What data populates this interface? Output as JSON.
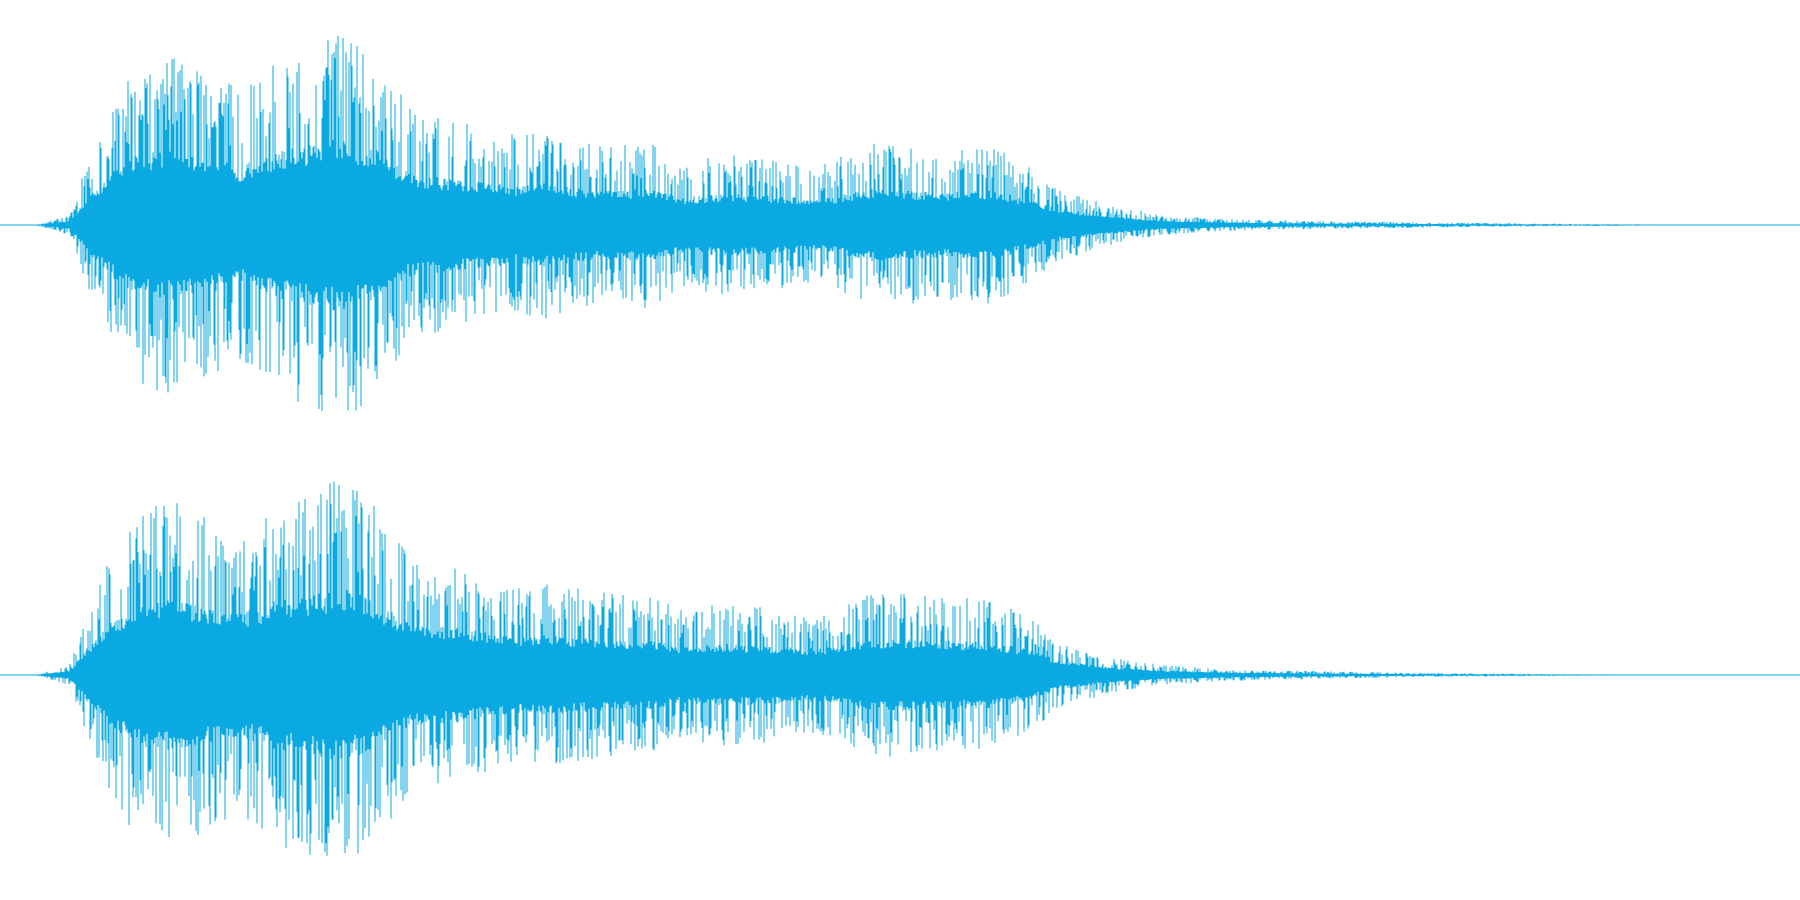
{
  "waveform": {
    "color": "#0aa9e2",
    "background": "#ffffff",
    "channels": [
      {
        "name": "channel-1",
        "envelope": [
          [
            0.0,
            0.0
          ],
          [
            0.02,
            0.05
          ],
          [
            0.03,
            0.3
          ],
          [
            0.045,
            0.6
          ],
          [
            0.06,
            0.82
          ],
          [
            0.08,
            0.86
          ],
          [
            0.1,
            0.8
          ],
          [
            0.12,
            0.68
          ],
          [
            0.14,
            0.84
          ],
          [
            0.16,
            0.92
          ],
          [
            0.18,
            1.0
          ],
          [
            0.2,
            0.86
          ],
          [
            0.22,
            0.58
          ],
          [
            0.25,
            0.52
          ],
          [
            0.28,
            0.46
          ],
          [
            0.3,
            0.48
          ],
          [
            0.33,
            0.4
          ],
          [
            0.36,
            0.42
          ],
          [
            0.38,
            0.32
          ],
          [
            0.4,
            0.36
          ],
          [
            0.43,
            0.34
          ],
          [
            0.46,
            0.3
          ],
          [
            0.49,
            0.42
          ],
          [
            0.53,
            0.38
          ],
          [
            0.56,
            0.4
          ],
          [
            0.58,
            0.3
          ],
          [
            0.6,
            0.18
          ],
          [
            0.63,
            0.1
          ],
          [
            0.66,
            0.05
          ],
          [
            0.7,
            0.03
          ],
          [
            0.75,
            0.02
          ],
          [
            0.8,
            0.015
          ],
          [
            0.85,
            0.01
          ],
          [
            0.9,
            0.006
          ],
          [
            0.95,
            0.003
          ],
          [
            0.97,
            0.001
          ],
          [
            1.0,
            0.0
          ]
        ]
      },
      {
        "name": "channel-2",
        "envelope": [
          [
            0.0,
            0.0
          ],
          [
            0.02,
            0.05
          ],
          [
            0.03,
            0.3
          ],
          [
            0.045,
            0.62
          ],
          [
            0.06,
            0.84
          ],
          [
            0.08,
            0.88
          ],
          [
            0.1,
            0.8
          ],
          [
            0.12,
            0.7
          ],
          [
            0.14,
            0.86
          ],
          [
            0.16,
            0.92
          ],
          [
            0.18,
            1.0
          ],
          [
            0.2,
            0.84
          ],
          [
            0.22,
            0.58
          ],
          [
            0.25,
            0.54
          ],
          [
            0.28,
            0.44
          ],
          [
            0.3,
            0.46
          ],
          [
            0.33,
            0.42
          ],
          [
            0.36,
            0.4
          ],
          [
            0.38,
            0.32
          ],
          [
            0.4,
            0.36
          ],
          [
            0.43,
            0.34
          ],
          [
            0.46,
            0.3
          ],
          [
            0.49,
            0.42
          ],
          [
            0.53,
            0.4
          ],
          [
            0.56,
            0.38
          ],
          [
            0.58,
            0.3
          ],
          [
            0.6,
            0.16
          ],
          [
            0.63,
            0.09
          ],
          [
            0.66,
            0.05
          ],
          [
            0.7,
            0.03
          ],
          [
            0.75,
            0.02
          ],
          [
            0.8,
            0.012
          ],
          [
            0.85,
            0.008
          ],
          [
            0.9,
            0.004
          ],
          [
            1.0,
            0.0
          ]
        ]
      }
    ]
  }
}
